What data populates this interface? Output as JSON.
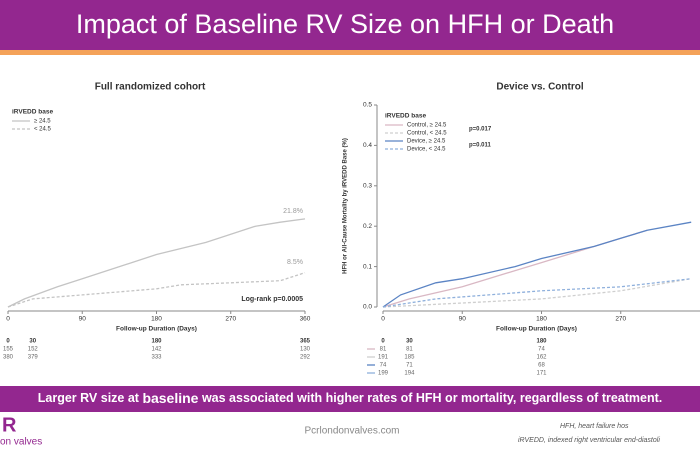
{
  "slide": {
    "title": "Impact of Baseline RV Size on HFH or Death",
    "banner_before": "Larger RV size at ",
    "banner_emph": "baseline",
    "banner_after": " was associated with higher rates of HFH or mortality, regardless of treatment.",
    "logo_letter": "R",
    "logo_text": "on valves",
    "website": "Pcrlondonvalves.com",
    "footnotes": [
      "HFH, heart failure hos",
      "iRVEDD, indexed right ventricular end-diastoli"
    ]
  },
  "chart_data": [
    {
      "type": "line",
      "title": "Full randomized cohort",
      "x_label": "Follow-up Duration (Days)",
      "legend_title": "iRVEDD base",
      "xlim": [
        0,
        360
      ],
      "xticks": [
        0,
        90,
        180,
        270,
        360
      ],
      "ylim": [
        0,
        0.5
      ],
      "series": [
        {
          "name": "≥ 24.5",
          "color": "#c4c4c4",
          "dashed": false,
          "x": [
            0,
            20,
            60,
            90,
            150,
            180,
            240,
            270,
            300,
            330,
            360
          ],
          "values": [
            0,
            0.02,
            0.05,
            0.07,
            0.11,
            0.13,
            0.16,
            0.18,
            0.2,
            0.21,
            0.218
          ]
        },
        {
          "name": "< 24.5",
          "color": "#c4c4c4",
          "dashed": true,
          "x": [
            0,
            30,
            90,
            180,
            210,
            270,
            330,
            345,
            360
          ],
          "values": [
            0,
            0.02,
            0.03,
            0.045,
            0.055,
            0.06,
            0.065,
            0.075,
            0.085
          ]
        }
      ],
      "annotations": [
        "21.8%",
        "8.5%",
        "Log-rank p=0.0005"
      ],
      "risk_table": {
        "times": [
          0,
          30,
          180,
          365
        ],
        "rows": [
          [
            155,
            152,
            142,
            130
          ],
          [
            380,
            379,
            333,
            292
          ]
        ]
      }
    },
    {
      "type": "line",
      "title": "Device vs. Control",
      "x_label": "Follow-up Duration (Days)",
      "y_label": "HFH or All-Cause Mortality by iRVEDD Base (%)",
      "legend_title": "iRVEDD base",
      "legend_notes": [
        "p=0.017",
        "p=0.011"
      ],
      "xlim": [
        0,
        360
      ],
      "xticks": [
        0,
        90,
        180,
        270
      ],
      "ylim": [
        0,
        0.5
      ],
      "yticks": [
        {
          "value": 0,
          "label": "0.0"
        },
        0.1,
        0.2,
        0.3,
        0.4,
        0.5
      ],
      "series": [
        {
          "name": "Control, ≥ 24.5",
          "color": "#d9b8c4",
          "dashed": false,
          "x": [
            0,
            30,
            90,
            150,
            180,
            240,
            270,
            300
          ],
          "values": [
            0,
            0.02,
            0.05,
            0.09,
            0.11,
            0.15,
            0.17,
            0.19
          ]
        },
        {
          "name": "Control, < 24.5",
          "color": "#cfcfcf",
          "dashed": true,
          "x": [
            0,
            90,
            180,
            270,
            350
          ],
          "values": [
            0,
            0.01,
            0.02,
            0.04,
            0.07
          ]
        },
        {
          "name": "Device, ≥ 24.5",
          "color": "#5b84c4",
          "dashed": false,
          "x": [
            0,
            20,
            60,
            90,
            150,
            180,
            240,
            270,
            300,
            350
          ],
          "values": [
            0,
            0.03,
            0.06,
            0.07,
            0.1,
            0.12,
            0.15,
            0.17,
            0.19,
            0.21
          ]
        },
        {
          "name": "Device, < 24.5",
          "color": "#8fb0dc",
          "dashed": true,
          "x": [
            0,
            60,
            120,
            180,
            270,
            350
          ],
          "values": [
            0,
            0.02,
            0.03,
            0.04,
            0.05,
            0.07
          ]
        }
      ],
      "risk_table": {
        "times": [
          0,
          30,
          180
        ],
        "rows": [
          [
            81,
            81,
            74
          ],
          [
            191,
            185,
            162
          ],
          [
            74,
            71,
            68
          ],
          [
            199,
            194,
            171
          ]
        ]
      }
    }
  ]
}
